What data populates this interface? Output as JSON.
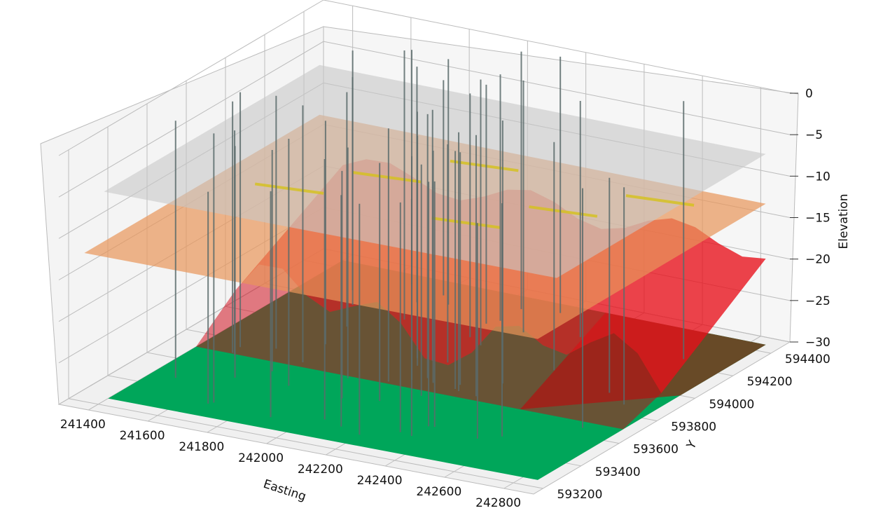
{
  "chart_data": {
    "type": "surface3d",
    "title": "",
    "axes": {
      "x": {
        "label": "Easting",
        "ticks": [
          241400,
          241600,
          241800,
          242000,
          242200,
          242400,
          242600,
          242800
        ],
        "range": [
          241300,
          242900
        ]
      },
      "y": {
        "label": "Y",
        "ticks": [
          593200,
          593400,
          593600,
          593800,
          594000,
          594200,
          594400
        ],
        "range": [
          593150,
          594500
        ]
      },
      "z": {
        "label": "Elevation",
        "ticks": [
          0,
          -5,
          -10,
          -15,
          -20,
          -25,
          -30
        ],
        "range": [
          -30,
          0
        ]
      }
    },
    "grid": true,
    "surfaces": [
      {
        "layer": "bottom",
        "elevation": -30,
        "color": "#00a65a"
      },
      {
        "layer": "red-undulating",
        "elevation_range": [
          -30,
          -18
        ],
        "color": "#e8101a"
      },
      {
        "layer": "orange-plane",
        "elevation": -13,
        "color": "#e8955a"
      },
      {
        "layer": "grey-plane",
        "elevation": -7,
        "color": "#c8c8c8"
      }
    ],
    "boreholes_approx_count": 60
  }
}
